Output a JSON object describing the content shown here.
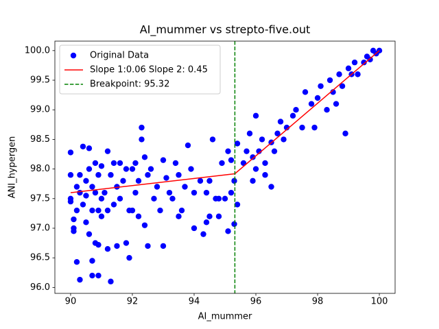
{
  "chart_data": {
    "type": "scatter",
    "title": "AI_mummer vs strepto-five.out",
    "x_label": "AI_mummer",
    "y_label": "ANI_hypergen",
    "xlim": [
      89.49,
      100.51
    ],
    "ylim": [
      95.9,
      100.16
    ],
    "xticks": [
      90,
      92,
      94,
      96,
      98,
      100
    ],
    "yticks": [
      {
        "value": 96,
        "label": "96.0"
      },
      {
        "value": 96.5,
        "label": "96.5"
      },
      {
        "value": 97,
        "label": "97.0"
      },
      {
        "value": 97.5,
        "label": "97.5"
      },
      {
        "value": 98,
        "label": "98.0"
      },
      {
        "value": 98.5,
        "label": "98.5"
      },
      {
        "value": 99,
        "label": "99.0"
      },
      {
        "value": 99.5,
        "label": "99.5"
      },
      {
        "value": 100,
        "label": "100.0"
      }
    ],
    "legend": "upper left",
    "series": [
      {
        "name": "Original Data",
        "type": "scatter",
        "color": "#0000ff",
        "x": [
          90.0,
          90.0,
          90.0,
          90.0,
          90.1,
          90.1,
          90.2,
          90.3,
          90.2,
          90.1,
          90.4,
          90.6,
          90.3,
          90.5,
          90.7,
          90.5,
          90.6,
          90.7,
          90.7,
          90.9,
          90.9,
          90.8,
          90.9,
          91.0,
          91.2,
          91.3,
          91.2,
          91.3,
          91.4,
          91.5,
          91.5,
          91.6,
          91.8,
          91.9,
          92.0,
          92.1,
          92.0,
          92.3,
          92.3,
          92.4,
          92.5,
          92.4,
          92.5,
          92.7,
          92.9,
          93.0,
          93.1,
          93.0,
          93.3,
          93.5,
          93.6,
          93.8,
          93.9,
          94.0,
          94.2,
          94.0,
          94.4,
          94.5,
          94.3,
          94.6,
          94.7,
          94.5,
          94.4,
          94.8,
          94.8,
          94.9,
          95.0,
          95.1,
          95.2,
          95.1,
          95.2,
          95.3,
          95.3,
          95.4,
          95.4,
          95.6,
          95.7,
          95.8,
          95.9,
          95.9,
          96.0,
          96.0,
          96.1,
          96.2,
          96.3,
          96.3,
          96.5,
          96.6,
          96.5,
          96.7,
          96.8,
          96.9,
          97.0,
          97.2,
          97.3,
          97.5,
          97.6,
          97.8,
          97.9,
          98.0,
          98.1,
          98.3,
          98.4,
          98.5,
          98.6,
          98.7,
          98.8,
          98.9,
          99.0,
          99.1,
          99.2,
          99.3,
          99.5,
          99.6,
          99.7,
          99.8,
          99.9,
          100.0,
          90.2,
          90.3,
          90.4,
          90.5,
          90.6,
          90.8,
          90.9,
          91.0,
          91.1,
          91.2,
          91.4,
          91.6,
          91.7,
          91.8,
          91.9,
          92.1,
          92.2,
          92.6,
          92.8,
          93.2,
          93.4,
          93.7,
          91.0,
          90.7,
          92.2,
          93.5,
          90.8
        ],
        "values": [
          98.28,
          97.9,
          97.5,
          97.45,
          97.0,
          96.95,
          96.43,
          96.13,
          97.3,
          97.15,
          98.38,
          98.35,
          97.6,
          97.8,
          97.7,
          97.1,
          96.9,
          96.45,
          96.2,
          96.2,
          96.72,
          98.1,
          97.3,
          97.5,
          96.65,
          96.1,
          98.3,
          97.9,
          97.4,
          96.7,
          97.7,
          98.1,
          96.75,
          96.5,
          98.0,
          98.1,
          97.3,
          98.7,
          98.5,
          98.2,
          97.9,
          97.05,
          96.7,
          97.5,
          97.3,
          96.7,
          97.85,
          98.15,
          97.5,
          97.9,
          97.3,
          98.4,
          98.0,
          97.6,
          97.8,
          97.0,
          97.6,
          97.8,
          96.9,
          98.5,
          97.5,
          97.2,
          97.1,
          97.5,
          97.2,
          98.1,
          97.5,
          98.3,
          98.15,
          96.95,
          97.6,
          97.8,
          97.07,
          98.43,
          97.4,
          98.1,
          98.3,
          98.6,
          98.2,
          97.8,
          98.9,
          98.0,
          98.3,
          98.5,
          98.1,
          97.9,
          98.45,
          98.3,
          97.7,
          98.6,
          98.8,
          98.5,
          98.7,
          98.9,
          99.0,
          98.7,
          99.3,
          99.1,
          98.7,
          99.2,
          99.4,
          99.0,
          99.5,
          99.3,
          99.1,
          99.6,
          99.4,
          98.6,
          99.7,
          99.6,
          99.8,
          99.6,
          99.8,
          99.9,
          99.85,
          100.0,
          99.95,
          100.0,
          97.7,
          97.9,
          97.4,
          97.55,
          98.0,
          97.6,
          97.9,
          98.05,
          97.6,
          97.3,
          98.1,
          97.5,
          97.8,
          98.0,
          97.3,
          97.6,
          97.8,
          98.0,
          97.7,
          97.6,
          98.1,
          97.7,
          97.2,
          97.3,
          97.2,
          97.2,
          96.75
        ]
      },
      {
        "name": "Slope 1:0.06 Slope 2: 0.45",
        "type": "line",
        "color": "#ff0000",
        "x": [
          90,
          95.32,
          100
        ],
        "values": [
          97.6,
          97.92,
          100.0
        ]
      }
    ],
    "breakpoint": {
      "name": "Breakpoint: 95.32",
      "value": 95.32,
      "color": "#008000"
    }
  }
}
